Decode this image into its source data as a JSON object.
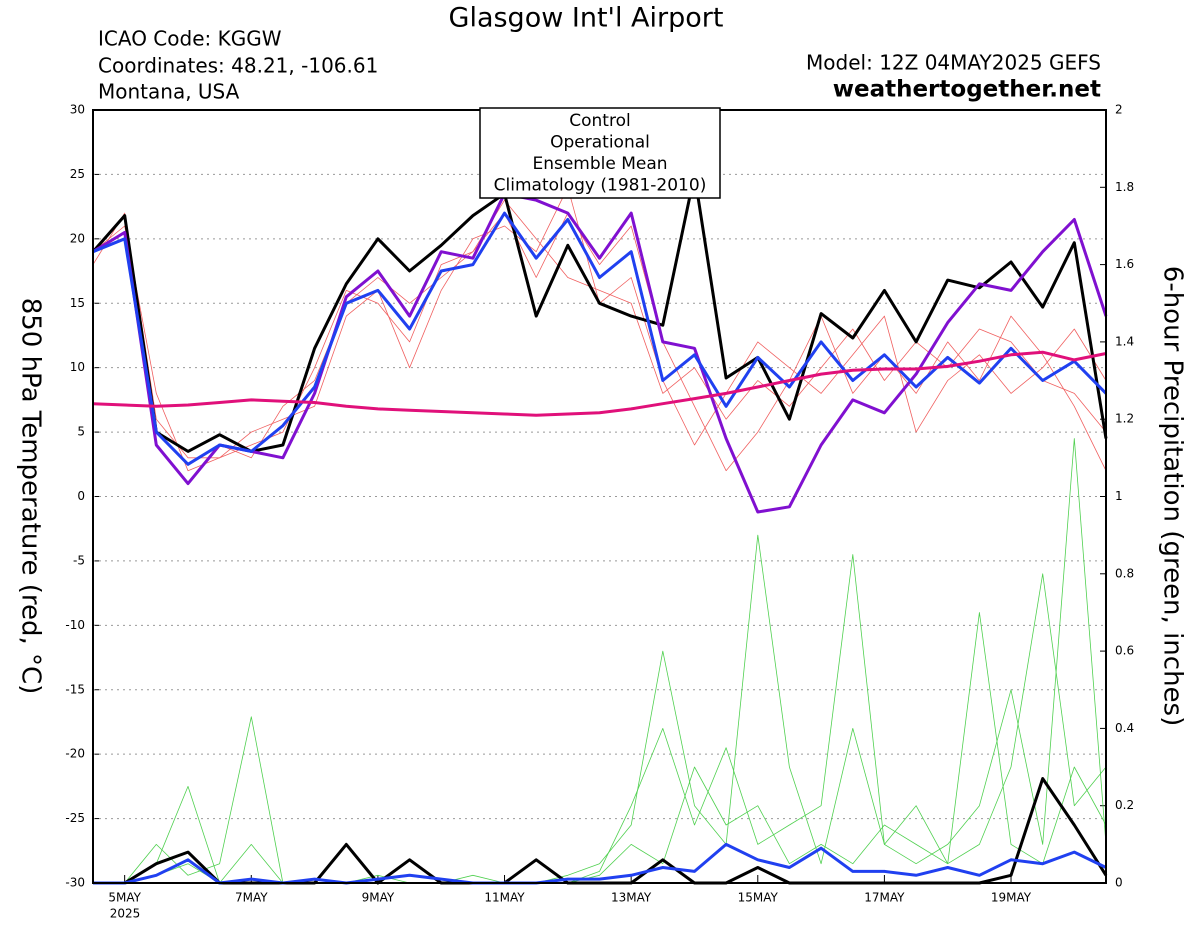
{
  "chart_data": {
    "type": "line",
    "title": "Glasgow Int'l Airport",
    "header_left": [
      "ICAO Code: KGGW",
      "Coordinates: 48.21, -106.61",
      "Montana, USA"
    ],
    "model": "Model: 12Z 04MAY2025 GEFS",
    "site": "weathertogether.net",
    "site_color": "#1e9bf0",
    "y_label": "850 hPa Temperature (red, °C)",
    "y2_label": "6-hour Precipitation (green, inches)",
    "x_year_label": "2025",
    "x": [
      -0.5,
      0,
      0.5,
      1,
      1.5,
      2,
      2.5,
      3,
      3.5,
      4,
      4.5,
      5,
      5.5,
      6,
      6.5,
      7,
      7.5,
      8,
      8.5,
      9,
      9.5,
      10,
      10.5,
      11,
      11.5,
      12,
      12.5,
      13,
      13.5,
      14,
      14.5,
      15,
      15.5
    ],
    "xlim": [
      -0.5,
      15.5
    ],
    "xticks": [
      {
        "value": 0,
        "label": "5MAY"
      },
      {
        "value": 2,
        "label": "7MAY"
      },
      {
        "value": 4,
        "label": "9MAY"
      },
      {
        "value": 6,
        "label": "11MAY"
      },
      {
        "value": 8,
        "label": "13MAY"
      },
      {
        "value": 10,
        "label": "15MAY"
      },
      {
        "value": 12,
        "label": "17MAY"
      },
      {
        "value": 14,
        "label": "19MAY"
      }
    ],
    "ylim": [
      -30,
      30
    ],
    "yticks": [
      -30,
      -25,
      -20,
      -15,
      -10,
      -5,
      0,
      5,
      10,
      15,
      20,
      25,
      30
    ],
    "y2lim": [
      0,
      2
    ],
    "y2ticks": [
      0,
      0.2,
      0.4,
      0.6,
      0.8,
      1,
      1.2,
      1.4,
      1.6,
      1.8,
      2
    ],
    "grid": true,
    "series": [
      {
        "color": "#f06060",
        "values": [
          19,
          21,
          8,
          2,
          3,
          4,
          5,
          10,
          16,
          15,
          12,
          18,
          19,
          23,
          20,
          17,
          16,
          15,
          8,
          10,
          6,
          9,
          7,
          10,
          13,
          9,
          12,
          10,
          13,
          12,
          9,
          8,
          5
        ]
      },
      {
        "color": "#f06060",
        "values": [
          19,
          20,
          4,
          1,
          4,
          3,
          7,
          9,
          15,
          17,
          15,
          17,
          19,
          22,
          17,
          22,
          18,
          21,
          12,
          7,
          2,
          5,
          9,
          14,
          8,
          11,
          8,
          12,
          9,
          14,
          11,
          7,
          2
        ]
      },
      {
        "color": "#f06060",
        "values": [
          18,
          22,
          6,
          3,
          3,
          5,
          6,
          7,
          14,
          16,
          10,
          16,
          20,
          21,
          19,
          24,
          15,
          17,
          9,
          4,
          8,
          12,
          10,
          8,
          11,
          14,
          5,
          9,
          11,
          8,
          10,
          13,
          9
        ]
      },
      {
        "color": "#50d050",
        "axis": "y2",
        "values": [
          0,
          0,
          0.05,
          0.25,
          0,
          0,
          0,
          0,
          0,
          0,
          0,
          0,
          0,
          0,
          0,
          0.02,
          0.05,
          0.15,
          0.6,
          0.2,
          0.1,
          0.9,
          0.3,
          0.05,
          0.4,
          0.1,
          0.05,
          0.1,
          0.2,
          0.5,
          0.1,
          1.15,
          0.1
        ]
      },
      {
        "color": "#50d050",
        "axis": "y2",
        "values": [
          0,
          0,
          0.1,
          0.02,
          0.05,
          0.43,
          0,
          0,
          0,
          0.02,
          0,
          0,
          0,
          0,
          0,
          0,
          0.03,
          0.2,
          0.4,
          0.15,
          0.35,
          0.1,
          0.15,
          0.2,
          0.85,
          0.1,
          0.2,
          0.05,
          0.1,
          0.3,
          0.8,
          0.2,
          0.3
        ]
      },
      {
        "color": "#50d050",
        "axis": "y2",
        "values": [
          0,
          0,
          0.02,
          0.05,
          0,
          0.1,
          0,
          0,
          0,
          0,
          0,
          0,
          0.02,
          0,
          0,
          0,
          0.02,
          0.1,
          0.05,
          0.3,
          0.15,
          0.2,
          0.05,
          0.1,
          0.05,
          0.15,
          0.1,
          0.05,
          0.7,
          0.1,
          0.05,
          0.3,
          0.15
        ]
      },
      {
        "name": "Control",
        "color": "#000000",
        "values": [
          19,
          21.8,
          5,
          3.5,
          4.8,
          3.5,
          4,
          11.5,
          16.5,
          20,
          17.5,
          19.5,
          21.8,
          23.5,
          14,
          19.5,
          15,
          14,
          13.3,
          25,
          9.2,
          10.8,
          6,
          14.2,
          12.3,
          16,
          12,
          16.8,
          16.2,
          18.2,
          14.7,
          19.7,
          4.5
        ]
      },
      {
        "name": "Operational",
        "color": "#8010d0",
        "values": [
          19,
          20.5,
          4,
          1,
          4,
          3.5,
          3,
          8,
          15.5,
          17.5,
          14,
          19,
          18.5,
          23.5,
          23,
          22,
          18.5,
          22,
          12,
          11.5,
          4.5,
          -1.2,
          -0.8,
          4,
          7.5,
          6.5,
          9.5,
          13.5,
          16.5,
          16,
          19,
          21.5,
          14
        ]
      },
      {
        "name": "Ensemble Mean",
        "color": "#2040f0",
        "values": [
          19,
          20,
          5,
          2.5,
          4,
          3.5,
          5.5,
          8.5,
          15,
          16,
          13,
          17.5,
          18,
          22,
          18.5,
          21.5,
          17,
          19,
          9,
          11,
          7,
          10.8,
          8.5,
          12,
          9,
          11,
          8.5,
          10.8,
          8.8,
          11.5,
          9,
          10.5,
          8
        ]
      },
      {
        "name": "Climatology (1981-2010)",
        "color": "#e0107a",
        "values": [
          7.2,
          7.1,
          7.0,
          7.1,
          7.3,
          7.5,
          7.4,
          7.3,
          7.0,
          6.8,
          6.7,
          6.6,
          6.5,
          6.4,
          6.3,
          6.4,
          6.5,
          6.8,
          7.2,
          7.6,
          8.0,
          8.5,
          9.0,
          9.5,
          9.8,
          9.9,
          9.9,
          10.1,
          10.5,
          11.0,
          11.2,
          10.6,
          11.1
        ]
      },
      {
        "color": "#000000",
        "axis": "y2",
        "values": [
          0,
          0,
          0.05,
          0.08,
          0,
          0,
          0,
          0,
          0.1,
          0,
          0.06,
          0,
          0,
          0,
          0.06,
          0,
          0,
          0,
          0.06,
          0,
          0,
          0.04,
          0,
          0,
          0,
          0,
          0,
          0,
          0,
          0.02,
          0.27,
          0.15,
          0.02
        ]
      },
      {
        "color": "#2040f0",
        "axis": "y2",
        "values": [
          0,
          0,
          0.02,
          0.06,
          0,
          0.01,
          0,
          0.01,
          0,
          0.01,
          0.02,
          0.01,
          0,
          0,
          0,
          0.01,
          0.01,
          0.02,
          0.04,
          0.03,
          0.1,
          0.06,
          0.04,
          0.09,
          0.03,
          0.03,
          0.02,
          0.04,
          0.02,
          0.06,
          0.05,
          0.08,
          0.04
        ]
      }
    ]
  }
}
